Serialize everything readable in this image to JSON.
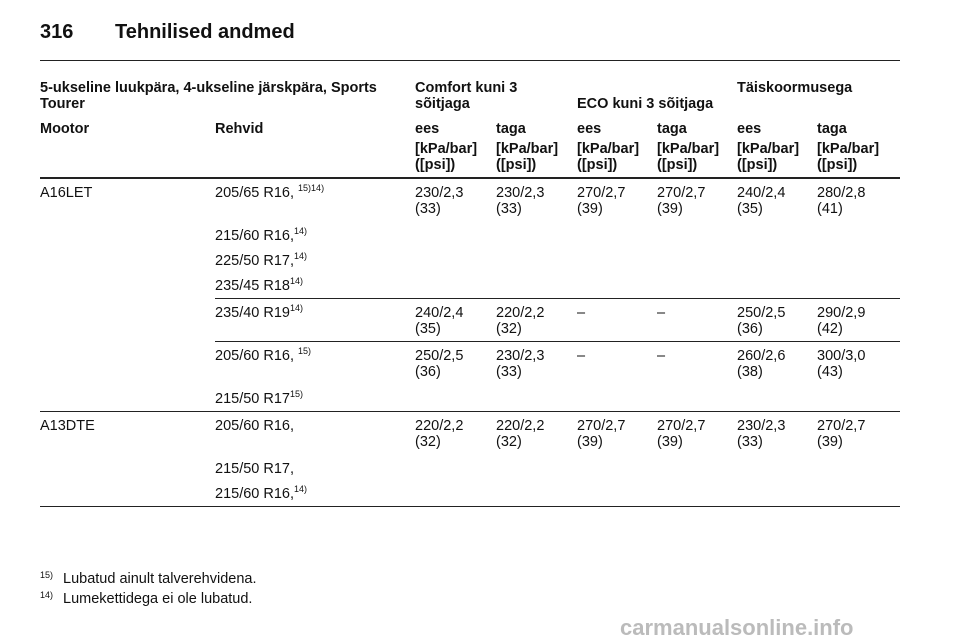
{
  "header": {
    "page_number": "316",
    "title": "Tehnilised andmed"
  },
  "table": {
    "group_headers": [
      "5-ukseline luukpära, 4-ukseline järskpära, Sports Tourer",
      "Comfort kuni 3 sõitjaga",
      "ECO kuni 3 sõitjaga",
      "Täiskoormusega"
    ],
    "columns": [
      "Mootor",
      "Rehvid",
      "ees",
      "taga",
      "ees",
      "taga",
      "ees",
      "taga"
    ],
    "units": [
      "[kPa/bar]\n([psi])",
      "[kPa/bar]\n([psi])",
      "[kPa/bar]\n([psi])",
      "[kPa/bar]\n([psi])",
      "[kPa/bar]\n([psi])",
      "[kPa/bar]\n([psi])"
    ],
    "engines": [
      {
        "engine": "A16LET",
        "sets": [
          {
            "tires": [
              {
                "text": "205/65 R16, ",
                "note": "15)14)"
              },
              {
                "text": "215/60 R16,",
                "note": "14)"
              },
              {
                "text": "225/50 R17,",
                "note": "14)"
              },
              {
                "text": "235/45 R18",
                "note": "14)"
              }
            ],
            "pressures": [
              "230/2,3\n(33)",
              "230/2,3\n(33)",
              "270/2,7\n(39)",
              "270/2,7\n(39)",
              "240/2,4\n(35)",
              "280/2,8\n(41)"
            ]
          },
          {
            "tires": [
              {
                "text": "235/40 R19",
                "note": "14)"
              }
            ],
            "pressures": [
              "240/2,4\n(35)",
              "220/2,2\n(32)",
              "–",
              "–",
              "250/2,5\n(36)",
              "290/2,9\n(42)"
            ]
          },
          {
            "tires": [
              {
                "text": "205/60 R16, ",
                "note": "15)"
              },
              {
                "text": "215/50 R17",
                "note": "15)"
              }
            ],
            "pressures": [
              "250/2,5\n(36)",
              "230/2,3\n(33)",
              "–",
              "–",
              "260/2,6\n(38)",
              "300/3,0\n(43)"
            ]
          }
        ]
      },
      {
        "engine": "A13DTE",
        "sets": [
          {
            "tires": [
              {
                "text": "205/60 R16,"
              },
              {
                "text": "215/50 R17,"
              },
              {
                "text": "215/60 R16,",
                "note": "14)"
              }
            ],
            "pressures": [
              "220/2,2\n(32)",
              "220/2,2\n(32)",
              "270/2,7\n(39)",
              "270/2,7\n(39)",
              "230/2,3\n(33)",
              "270/2,7\n(39)"
            ]
          }
        ]
      }
    ]
  },
  "footnotes": [
    {
      "mark": "15)",
      "text": "Lubatud ainult talverehvidena."
    },
    {
      "mark": "14)",
      "text": "Lumekettidega ei ole lubatud."
    }
  ],
  "watermark": "carmanualsonline.info"
}
